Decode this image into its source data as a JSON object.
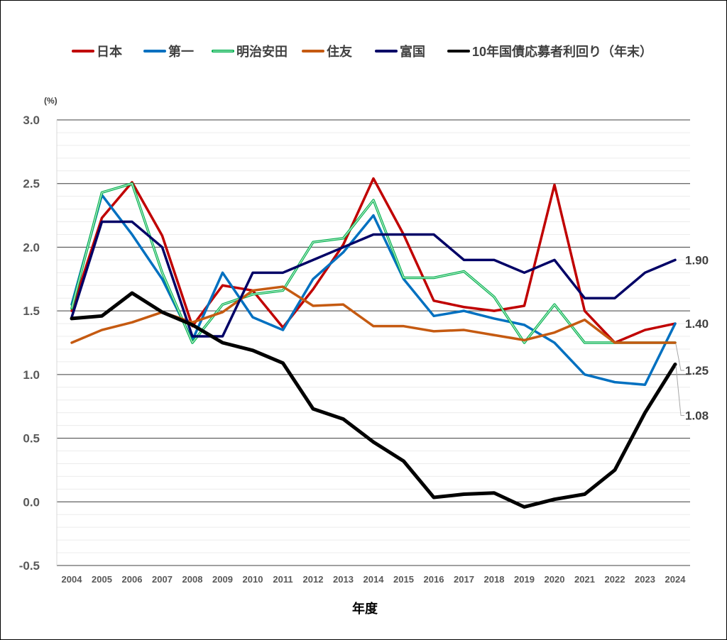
{
  "chart_data": {
    "type": "line",
    "title": "",
    "xlabel": "年度",
    "ylabel": "(%)",
    "ylim": [
      -0.5,
      3.0
    ],
    "yticks": [
      "3.0",
      "2.5",
      "2.0",
      "1.5",
      "1.0",
      "0.5",
      "0.0",
      "-0.5"
    ],
    "ytick_values": [
      3.0,
      2.5,
      2.0,
      1.5,
      1.0,
      0.5,
      0.0,
      -0.5
    ],
    "minor_grid_step": 0.1,
    "legend_position": "top",
    "x": [
      "2004",
      "2005",
      "2006",
      "2007",
      "2008",
      "2009",
      "2010",
      "2011",
      "2012",
      "2013",
      "2014",
      "2015",
      "2016",
      "2017",
      "2018",
      "2019",
      "2020",
      "2021",
      "2022",
      "2023",
      "2024"
    ],
    "series": [
      {
        "name": "日本",
        "color": "#c00000",
        "values": [
          1.5,
          2.23,
          2.51,
          2.09,
          1.38,
          1.7,
          1.66,
          1.37,
          1.67,
          2.02,
          2.54,
          2.1,
          1.58,
          1.53,
          1.5,
          1.54,
          2.49,
          1.5,
          1.25,
          1.35,
          1.4
        ]
      },
      {
        "name": "第一",
        "color": "#0070c0",
        "values": [
          1.55,
          2.41,
          2.1,
          1.75,
          1.27,
          1.8,
          1.45,
          1.35,
          1.75,
          1.96,
          2.25,
          1.75,
          1.46,
          1.5,
          1.44,
          1.39,
          1.25,
          1.0,
          0.94,
          0.92,
          1.4
        ]
      },
      {
        "name": "明治安田",
        "color": "#00b050",
        "values": [
          1.52,
          2.43,
          2.5,
          1.8,
          1.25,
          1.55,
          1.63,
          1.66,
          2.04,
          2.07,
          2.37,
          1.76,
          1.76,
          1.81,
          1.61,
          1.25,
          1.55,
          1.25,
          1.25,
          1.25,
          1.25
        ]
      },
      {
        "name": "住友",
        "color": "#c55a11",
        "values": [
          1.25,
          1.35,
          1.41,
          1.49,
          1.41,
          1.49,
          1.66,
          1.69,
          1.54,
          1.55,
          1.38,
          1.38,
          1.34,
          1.35,
          1.31,
          1.27,
          1.33,
          1.43,
          1.25,
          1.25,
          1.25
        ]
      },
      {
        "name": "富国",
        "color": "#000066",
        "values": [
          1.45,
          2.2,
          2.2,
          2.0,
          1.3,
          1.3,
          1.8,
          1.8,
          1.9,
          2.0,
          2.1,
          2.1,
          2.1,
          1.9,
          1.9,
          1.8,
          1.9,
          1.6,
          1.6,
          1.8,
          1.9
        ]
      },
      {
        "name": "10年国債応募者利回り（年末）",
        "color": "#000000",
        "values": [
          1.44,
          1.46,
          1.64,
          1.49,
          1.39,
          1.25,
          1.19,
          1.09,
          0.73,
          0.65,
          0.47,
          0.32,
          0.035,
          0.06,
          0.07,
          -0.04,
          0.02,
          0.06,
          0.25,
          0.7,
          1.08
        ]
      }
    ],
    "data_labels": [
      {
        "text": "1.90",
        "value": 1.9,
        "leader": false
      },
      {
        "text": "1.40",
        "value": 1.4,
        "leader": false
      },
      {
        "text": "1.25",
        "value": 1.25,
        "leader": true
      },
      {
        "text": "1.08",
        "value": 1.08,
        "leader": true
      }
    ]
  }
}
